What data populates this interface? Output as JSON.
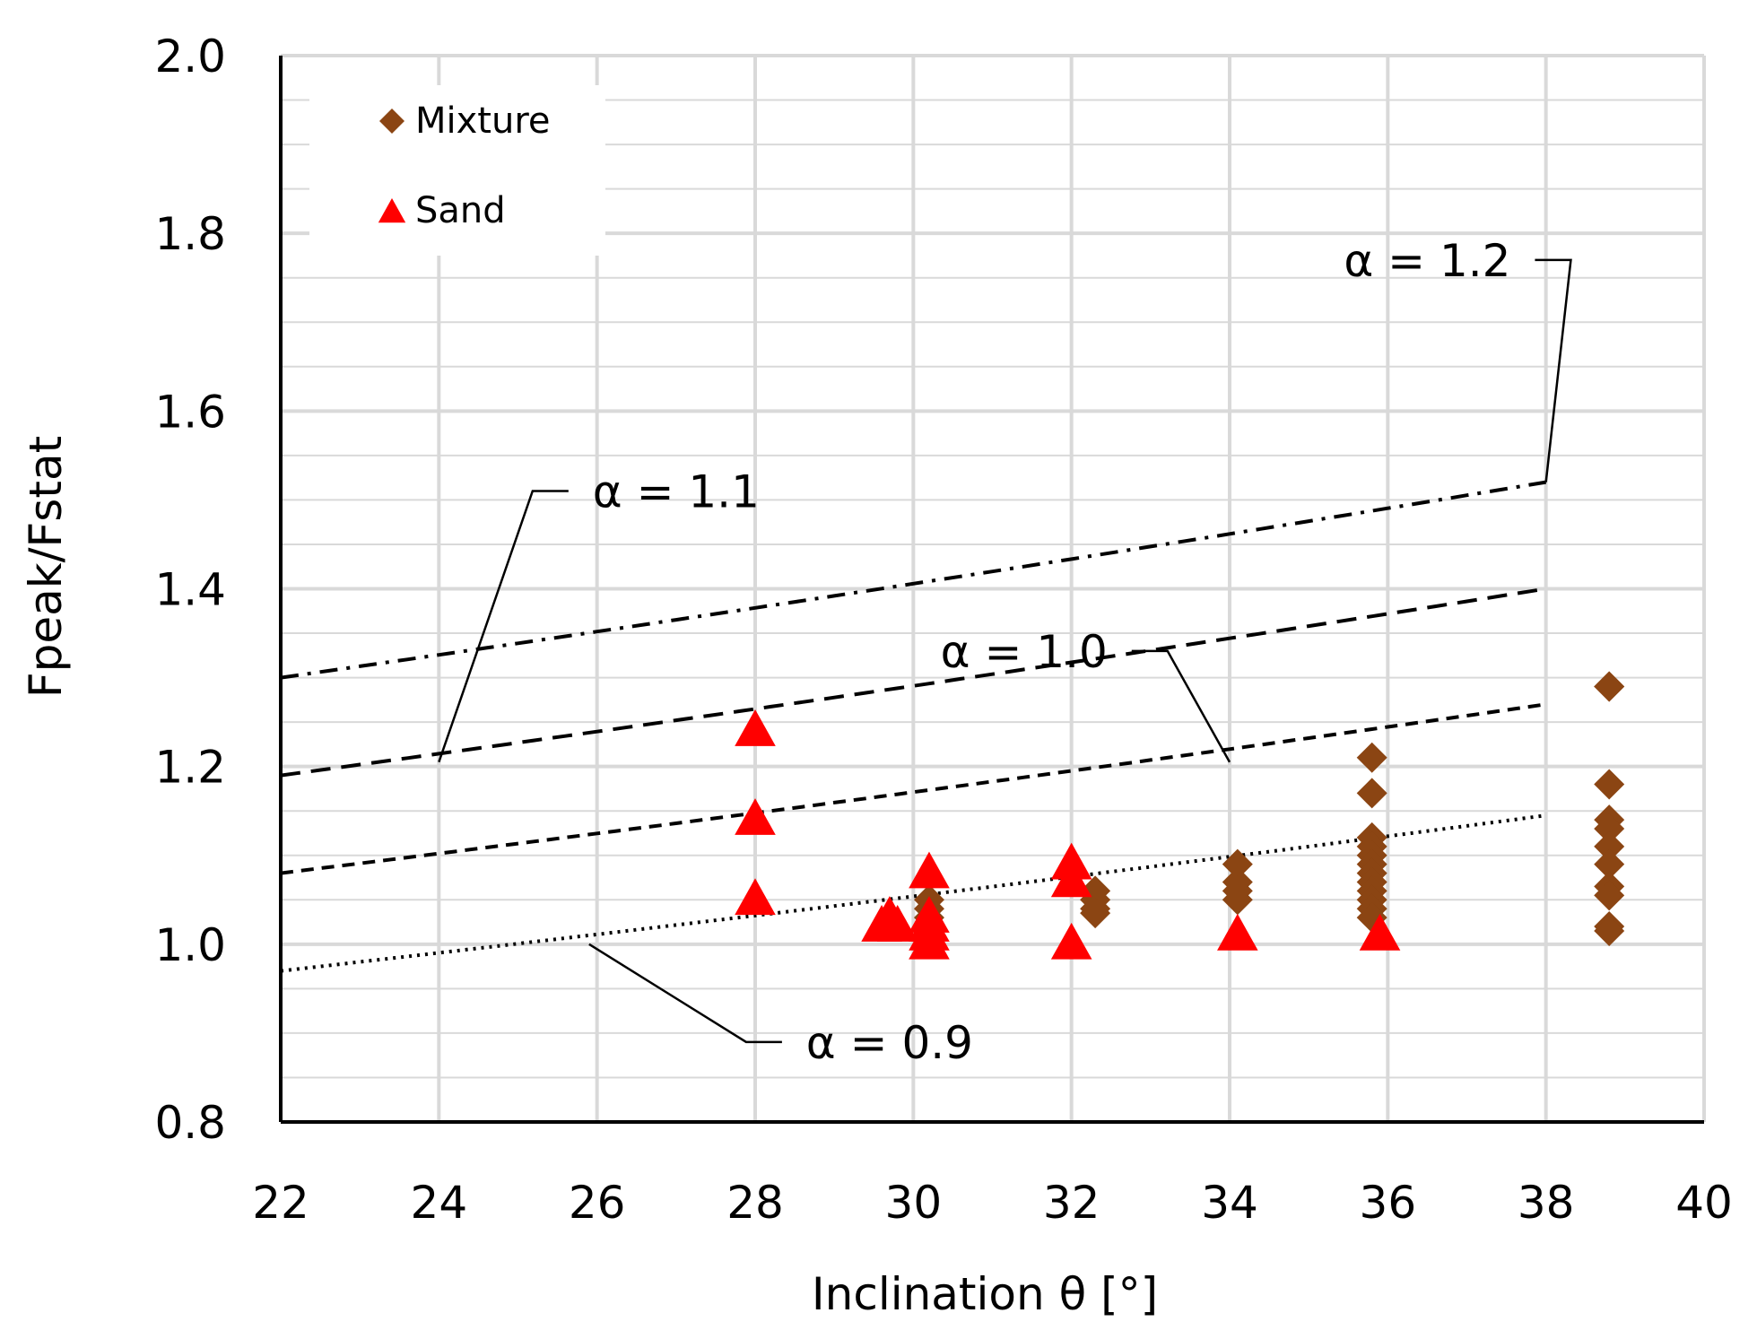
{
  "chart_data": {
    "type": "scatter",
    "title": "",
    "xlabel": "Inclination θ [°]",
    "ylabel": "Fpeak/Fstat",
    "xlim": [
      22,
      40
    ],
    "ylim": [
      0.8,
      2.0
    ],
    "xticks": [
      "22",
      "24",
      "26",
      "28",
      "30",
      "32",
      "34",
      "36",
      "38",
      "40"
    ],
    "yticks": [
      "0.8",
      "1.0",
      "1.2",
      "1.4",
      "1.6",
      "1.8",
      "2.0"
    ],
    "grid": true,
    "legend_position": "top-left",
    "colors": {
      "mixture": "#8B4513",
      "sand": "#FF0000",
      "curve": "#000000",
      "grid": "#D9D9D9"
    },
    "series": [
      {
        "name": "Mixture",
        "marker": "diamond",
        "points": [
          [
            30.2,
            1.04
          ],
          [
            30.2,
            1.03
          ],
          [
            30.2,
            1.05
          ],
          [
            32.3,
            1.06
          ],
          [
            32.3,
            1.05
          ],
          [
            32.3,
            1.04
          ],
          [
            32.3,
            1.035
          ],
          [
            34.1,
            1.09
          ],
          [
            34.1,
            1.07
          ],
          [
            34.1,
            1.06
          ],
          [
            34.1,
            1.05
          ],
          [
            35.8,
            1.21
          ],
          [
            35.8,
            1.17
          ],
          [
            35.8,
            1.12
          ],
          [
            35.8,
            1.11
          ],
          [
            35.8,
            1.1
          ],
          [
            35.8,
            1.09
          ],
          [
            35.8,
            1.08
          ],
          [
            35.8,
            1.07
          ],
          [
            35.8,
            1.06
          ],
          [
            35.8,
            1.05
          ],
          [
            35.8,
            1.04
          ],
          [
            35.8,
            1.03
          ],
          [
            38.8,
            1.29
          ],
          [
            38.8,
            1.29
          ],
          [
            38.8,
            1.18
          ],
          [
            38.8,
            1.14
          ],
          [
            38.8,
            1.13
          ],
          [
            38.8,
            1.11
          ],
          [
            38.8,
            1.09
          ],
          [
            38.8,
            1.065
          ],
          [
            38.8,
            1.055
          ],
          [
            38.8,
            1.02
          ],
          [
            38.8,
            1.015
          ]
        ]
      },
      {
        "name": "Sand",
        "marker": "triangle",
        "points": [
          [
            28.0,
            1.24
          ],
          [
            28.0,
            1.14
          ],
          [
            28.0,
            1.05
          ],
          [
            29.6,
            1.02
          ],
          [
            29.7,
            1.03
          ],
          [
            29.8,
            1.02
          ],
          [
            30.2,
            1.08
          ],
          [
            30.2,
            1.03
          ],
          [
            30.2,
            1.02
          ],
          [
            30.2,
            1.01
          ],
          [
            30.2,
            1.0
          ],
          [
            32.0,
            1.09
          ],
          [
            32.0,
            1.07
          ],
          [
            32.0,
            1.0
          ],
          [
            34.1,
            1.01
          ],
          [
            35.9,
            1.01
          ]
        ]
      }
    ],
    "curves": [
      {
        "name": "α = 0.9",
        "style": "dotted",
        "x": [
          22,
          38
        ],
        "y": [
          0.97,
          1.145
        ]
      },
      {
        "name": "α = 1.0",
        "style": "short-dash",
        "x": [
          22,
          38
        ],
        "y": [
          1.08,
          1.27
        ]
      },
      {
        "name": "α = 1.1",
        "style": "dash",
        "x": [
          22,
          38
        ],
        "y": [
          1.19,
          1.4
        ]
      },
      {
        "name": "α = 1.2",
        "style": "dash-dot",
        "x": [
          22,
          38
        ],
        "y": [
          1.3,
          1.52
        ]
      }
    ],
    "annotations": [
      {
        "text": "α = 0.9",
        "x": 29.7,
        "y": 0.89,
        "points_to": [
          25.9,
          1.0
        ]
      },
      {
        "text": "α = 1.0",
        "x": 31.4,
        "y": 1.33,
        "points_to": [
          34.0,
          1.205
        ]
      },
      {
        "text": "α = 1.1",
        "x": 27.0,
        "y": 1.51,
        "points_to": [
          24.0,
          1.205
        ]
      },
      {
        "text": "α = 1.2",
        "x": 36.5,
        "y": 1.77,
        "points_to": [
          38.0,
          1.52
        ]
      }
    ]
  }
}
